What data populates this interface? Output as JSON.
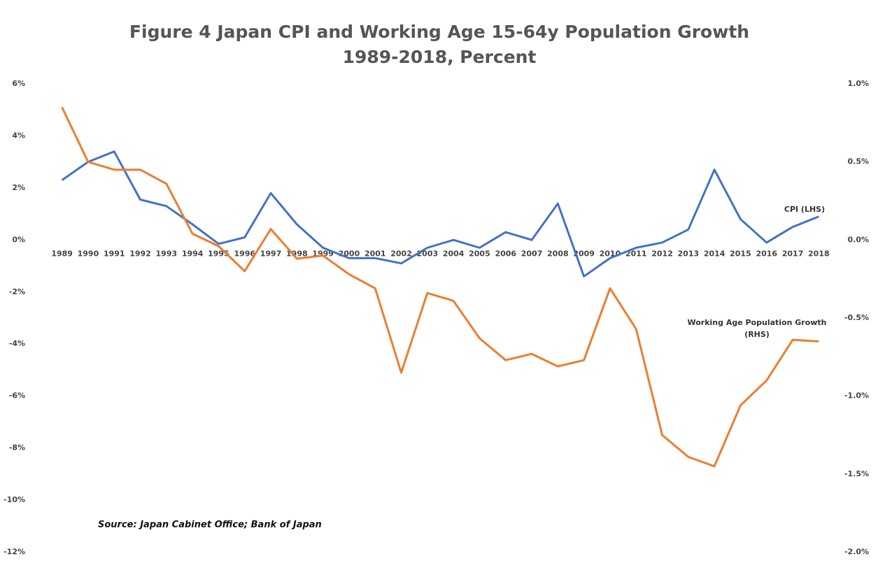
{
  "chart_data": {
    "type": "line",
    "title": "Figure 4   Japan CPI and Working Age 15-64y Population Growth",
    "subtitle": "1989-2018, Percent",
    "categories": [
      "1989",
      "1990",
      "1991",
      "1992",
      "1993",
      "1994",
      "1995",
      "1996",
      "1997",
      "1998",
      "1999",
      "2000",
      "2001",
      "2002",
      "2003",
      "2004",
      "2005",
      "2006",
      "2007",
      "2008",
      "2009",
      "2010",
      "2011",
      "2012",
      "2013",
      "2014",
      "2015",
      "2016",
      "2017",
      "2018"
    ],
    "series": [
      {
        "name": "CPI (LHS)",
        "color": "#4472c4",
        "axis": "y",
        "values": [
          2.3,
          3.0,
          3.4,
          1.55,
          1.3,
          0.6,
          -0.15,
          0.1,
          1.8,
          0.6,
          -0.3,
          -0.7,
          -0.7,
          -0.9,
          -0.3,
          0.0,
          -0.3,
          0.3,
          0.0,
          1.4,
          -1.4,
          -0.7,
          -0.3,
          -0.1,
          0.4,
          2.7,
          0.8,
          -0.1,
          0.5,
          0.9
        ]
      },
      {
        "name": "Working Age Population  Growth",
        "color": "#ed7d31",
        "axis": "y2",
        "values": [
          0.85,
          0.5,
          0.45,
          0.45,
          0.36,
          0.04,
          -0.04,
          -0.2,
          0.07,
          -0.12,
          -0.1,
          -0.22,
          -0.31,
          -0.85,
          -0.34,
          -0.39,
          -0.63,
          -0.77,
          -0.73,
          -0.81,
          -0.77,
          -0.31,
          -0.57,
          -1.25,
          -1.39,
          -1.45,
          -1.06,
          -0.9,
          -0.64,
          -0.65
        ]
      }
    ],
    "series_note": "(RHS)",
    "source": "Source: Japan Cabinet Office; Bank of Japan",
    "ylim": [
      -12,
      6
    ],
    "yticks": [
      {
        "value": 6,
        "label": "6%"
      },
      {
        "value": 4,
        "label": "4%"
      },
      {
        "value": 2,
        "label": "2%"
      },
      {
        "value": 0,
        "label": "0%"
      },
      {
        "value": -2,
        "label": "-2%"
      },
      {
        "value": -4,
        "label": "-4%"
      },
      {
        "value": -6,
        "label": "-6%"
      },
      {
        "value": -8,
        "label": "-8%"
      },
      {
        "value": -10,
        "label": "-10%"
      },
      {
        "value": -12,
        "label": "-12%"
      }
    ],
    "y2lim": [
      -2.0,
      1.0
    ],
    "y2ticks": [
      {
        "value": 1.0,
        "label": "1.0%"
      },
      {
        "value": 0.5,
        "label": "0.5%"
      },
      {
        "value": 0.0,
        "label": "0.0%"
      },
      {
        "value": -0.5,
        "label": "-0.5%"
      },
      {
        "value": -1.0,
        "label": "-1.0%"
      },
      {
        "value": -1.5,
        "label": "-1.5%"
      },
      {
        "value": -2.0,
        "label": "-2.0%"
      }
    ],
    "grid": false
  }
}
